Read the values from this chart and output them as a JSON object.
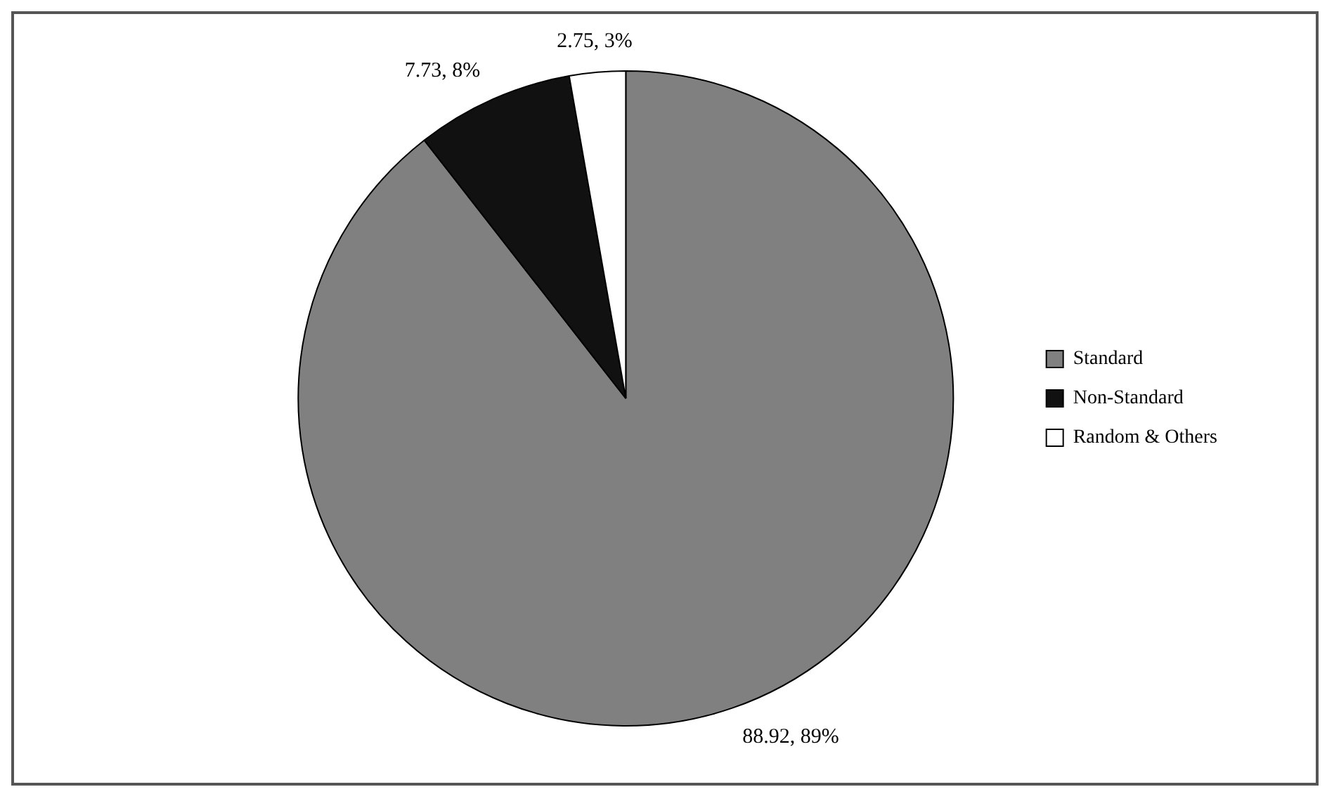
{
  "chart_data": {
    "type": "pie",
    "categories": [
      "Standard",
      "Non-Standard",
      "Random & Others"
    ],
    "values": [
      88.92,
      7.73,
      2.75
    ],
    "colors": [
      "#808080",
      "#111111",
      "#ffffff"
    ],
    "value_labels": [
      "88.92, 89%",
      "7.73, 8%",
      "2.75, 3%"
    ],
    "legend": "right"
  }
}
